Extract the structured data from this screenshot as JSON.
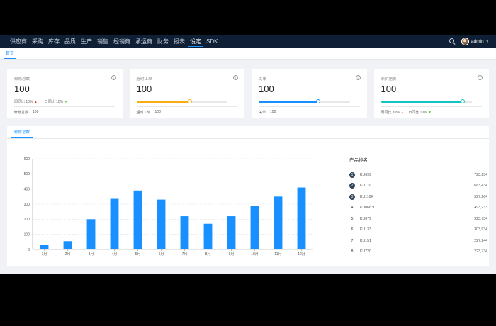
{
  "nav": {
    "items": [
      "供应商",
      "采购",
      "库存",
      "品质",
      "生产",
      "销售",
      "经销商",
      "承运商",
      "财务",
      "报表",
      "设定",
      "SDK"
    ],
    "active_index": 10,
    "username": "admin"
  },
  "tabs": {
    "home": "首页"
  },
  "cards": [
    {
      "label": "修修总数",
      "value": "100",
      "weekly_label": "周同比 10%",
      "daily_label": "日同比 10%",
      "footer_label": "修修总数",
      "footer_value": "100"
    },
    {
      "label": "超时工单",
      "value": "100",
      "progress": 0.59,
      "color": "#faad14",
      "footer_label": "超时工单",
      "footer_value": "100"
    },
    {
      "label": "关单",
      "value": "100",
      "progress": 0.65,
      "color": "#1890ff",
      "footer_label": "关单",
      "footer_value": "100"
    },
    {
      "label": "原价据表",
      "value": "100",
      "progress": 0.9,
      "color": "#13c2c2",
      "weekly_label": "周同比 10%",
      "daily_label": "日同比 10%"
    }
  ],
  "panel": {
    "tab": "修修总数"
  },
  "chart_data": {
    "type": "bar",
    "categories": [
      "1月",
      "2月",
      "3月",
      "4月",
      "5月",
      "6月",
      "7月",
      "8月",
      "9月",
      "10月",
      "11月",
      "12月"
    ],
    "values": [
      30,
      55,
      200,
      335,
      390,
      330,
      220,
      170,
      220,
      290,
      350,
      410
    ],
    "ylim": [
      0,
      600
    ],
    "yticks": [
      0,
      100,
      200,
      300,
      400,
      500,
      600
    ],
    "color": "#1890ff",
    "grid": true
  },
  "ranking": {
    "title": "产品排名",
    "items": [
      {
        "rank": "1",
        "name": "KU699",
        "value": "723,234"
      },
      {
        "rank": "2",
        "name": "KU110",
        "value": "683,434"
      },
      {
        "rank": "3",
        "name": "KU110K",
        "value": "527,264"
      },
      {
        "rank": "4",
        "name": "KU066.9",
        "value": "493,233"
      },
      {
        "rank": "5",
        "name": "KU079",
        "value": "323,734"
      },
      {
        "rank": "6",
        "name": "KU133",
        "value": "303,934"
      },
      {
        "rank": "7",
        "name": "KU151",
        "value": "227,244"
      },
      {
        "rank": "8",
        "name": "KU720",
        "value": "223,734"
      }
    ]
  }
}
